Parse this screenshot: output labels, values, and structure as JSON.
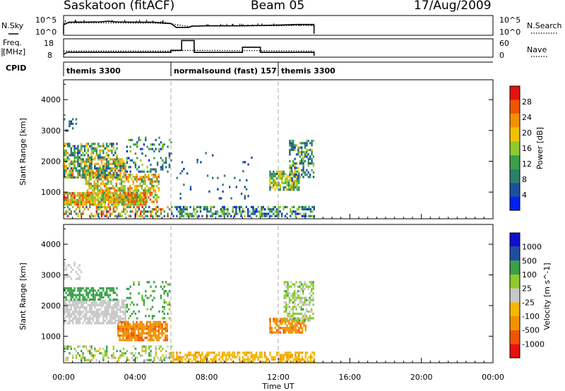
{
  "header": {
    "station": "Saskatoon (fitACF)",
    "beam": "Beam 05",
    "date": "17/Aug/2009"
  },
  "panels": {
    "nsky": {
      "label": "N.Sky",
      "right_label": "N.Search",
      "ticks_left": [
        "10^5",
        "10^0"
      ],
      "ticks_right": [
        "10^5",
        "10^0"
      ]
    },
    "freq": {
      "label_line1": "Freq.",
      "label_line2": "[MHz]",
      "right_label": "Nave",
      "ticks_left": [
        "18",
        "8"
      ],
      "ticks_right": [
        "60",
        "0"
      ]
    },
    "cpid": {
      "label": "CPID",
      "segments": [
        {
          "text": "themis 3300",
          "start_h": 0.0,
          "end_h": 6.0
        },
        {
          "text": "normalsound (fast) 157",
          "start_h": 6.0,
          "end_h": 12.0
        },
        {
          "text": "themis 3300",
          "start_h": 12.0,
          "end_h": 14.0
        }
      ]
    }
  },
  "colors": {
    "power": [
      "#0022ee",
      "#1e4f9c",
      "#2a7f6a",
      "#3aa049",
      "#8ecb2a",
      "#f5c000",
      "#f29200",
      "#ef5500",
      "#e81010"
    ],
    "velocity": [
      "#e81010",
      "#ef5500",
      "#f29200",
      "#f5b800",
      "#c8c8c8",
      "#8ecb2a",
      "#3aa049",
      "#1e4f9c",
      "#1010cc"
    ],
    "cpid_divider": "#aaaaaa"
  },
  "chart_data": [
    {
      "type": "line",
      "title": "N.Sky",
      "x_range": [
        0,
        24
      ],
      "y_scale": "log",
      "ylim": [
        "10^0",
        "10^5"
      ],
      "data_end_h": 14.0,
      "series": [
        {
          "name": "N.Sky",
          "style": "solid",
          "x": [
            0,
            0.3,
            1,
            2,
            2.5,
            3,
            4,
            5,
            6,
            6.3,
            7,
            7.2,
            8,
            9,
            10,
            11,
            12,
            13,
            14
          ],
          "y": [
            2.8,
            3.6,
            3.6,
            3.7,
            3.9,
            3.7,
            3.6,
            3.6,
            3.2,
            2.0,
            2.0,
            2.4,
            2.5,
            2.5,
            2.5,
            2.6,
            2.7,
            2.9,
            2.9
          ]
        },
        {
          "name": "N.Search",
          "style": "dotted",
          "x": [
            0,
            1,
            2,
            3,
            4,
            5,
            6,
            7,
            8,
            9,
            10,
            11,
            12,
            13,
            14
          ],
          "y": [
            3.3,
            3.4,
            3.4,
            3.4,
            3.3,
            3.3,
            3.1,
            2.3,
            2.4,
            2.4,
            2.4,
            2.5,
            2.5,
            2.6,
            2.6
          ]
        }
      ]
    },
    {
      "type": "line",
      "title": "Freq. / Nave",
      "x_range": [
        0,
        24
      ],
      "ylim": [
        8,
        18
      ],
      "ylim_right": [
        0,
        60
      ],
      "data_end_h": 14.0,
      "series": [
        {
          "name": "Freq.",
          "unit": "MHz",
          "style": "solid",
          "x": [
            0,
            0.2,
            6.0,
            6.0,
            6.6,
            6.6,
            7.3,
            7.3,
            10.0,
            10.0,
            11.0,
            11.0,
            14.0
          ],
          "y": [
            9.0,
            10.2,
            10.2,
            11.5,
            11.5,
            17.8,
            17.8,
            10.2,
            10.2,
            13.5,
            13.5,
            10.2,
            10.2
          ]
        },
        {
          "name": "Nave",
          "style": "dotted",
          "x": [
            0,
            6,
            7,
            12,
            14
          ],
          "y": [
            18,
            18,
            21,
            19,
            18
          ]
        }
      ]
    },
    {
      "type": "heatmap",
      "title": "Power",
      "xlabel": "Time UT",
      "ylabel": "Slant Range [km]",
      "colorbar_label": "Power [dB]",
      "colorbar_ticks": [
        4,
        8,
        12,
        16,
        20,
        24,
        28
      ],
      "colorbar_range": [
        0,
        32
      ],
      "x_ticks": [
        "00:00",
        "04:00",
        "08:00",
        "12:00",
        "16:00",
        "20:00",
        "00:00"
      ],
      "x_range": [
        0,
        24
      ],
      "y_ticks": [
        1000,
        2000,
        3000,
        4000
      ],
      "ylim": [
        180,
        4600
      ],
      "data_end_h": 14.0,
      "blobs": [
        {
          "t0": 0.0,
          "t1": 4.6,
          "r0": 600,
          "r1": 1000,
          "dens": 0.88,
          "p": [
            12,
            30
          ]
        },
        {
          "t0": 1.2,
          "t1": 5.3,
          "r0": 700,
          "r1": 1600,
          "dens": 0.6,
          "p": [
            10,
            28
          ]
        },
        {
          "t0": 0.0,
          "t1": 3.5,
          "r0": 1500,
          "r1": 2100,
          "dens": 0.75,
          "p": [
            4,
            26
          ]
        },
        {
          "t0": 0.0,
          "t1": 3.0,
          "r0": 2100,
          "r1": 2600,
          "dens": 0.55,
          "p": [
            3,
            22
          ]
        },
        {
          "t0": 0.0,
          "t1": 0.7,
          "r0": 3000,
          "r1": 3400,
          "dens": 0.3,
          "p": [
            2,
            12
          ]
        },
        {
          "t0": 3.5,
          "t1": 6.0,
          "r0": 1700,
          "r1": 2800,
          "dens": 0.22,
          "p": [
            2,
            16
          ]
        },
        {
          "t0": 0.0,
          "t1": 6.0,
          "r0": 200,
          "r1": 550,
          "dens": 0.45,
          "p": [
            4,
            30
          ]
        },
        {
          "t0": 6.0,
          "t1": 14.0,
          "r0": 200,
          "r1": 550,
          "dens": 0.55,
          "p": [
            2,
            18
          ]
        },
        {
          "t0": 11.5,
          "t1": 13.2,
          "r0": 1100,
          "r1": 1700,
          "dens": 0.7,
          "p": [
            6,
            22
          ]
        },
        {
          "t0": 12.6,
          "t1": 14.0,
          "r0": 1500,
          "r1": 2700,
          "dens": 0.5,
          "p": [
            3,
            20
          ]
        },
        {
          "t0": 6.3,
          "t1": 10.5,
          "r0": 800,
          "r1": 2300,
          "dens": 0.05,
          "p": [
            2,
            10
          ]
        }
      ]
    },
    {
      "type": "heatmap",
      "title": "Velocity",
      "xlabel": "Time UT",
      "ylabel": "Slant Range [km]",
      "colorbar_label": "Velocity [m s^-1]",
      "colorbar_ticks": [
        "-1000",
        "-500",
        "-100",
        "-25",
        "25",
        "100",
        "500",
        "1000"
      ],
      "colorbar_range": [
        -1200,
        1200
      ],
      "x_ticks": [
        "00:00",
        "04:00",
        "08:00",
        "12:00",
        "16:00",
        "20:00",
        "00:00"
      ],
      "x_range": [
        0,
        24
      ],
      "y_ticks": [
        1000,
        2000,
        3000,
        4000
      ],
      "ylim": [
        180,
        4600
      ],
      "data_end_h": 14.0,
      "blobs": [
        {
          "t0": 0.0,
          "t1": 3.5,
          "r0": 1400,
          "r1": 2200,
          "dens": 0.75,
          "v": [
            -25,
            25
          ]
        },
        {
          "t0": 0.0,
          "t1": 3.0,
          "r0": 2200,
          "r1": 2600,
          "dens": 0.6,
          "v": [
            100,
            400
          ]
        },
        {
          "t0": 3.0,
          "t1": 5.8,
          "r0": 900,
          "r1": 1500,
          "dens": 0.8,
          "v": [
            -600,
            -150
          ]
        },
        {
          "t0": 0.0,
          "t1": 6.0,
          "r0": 200,
          "r1": 700,
          "dens": 0.35,
          "v": [
            -60,
            140
          ]
        },
        {
          "t0": 6.0,
          "t1": 14.0,
          "r0": 200,
          "r1": 500,
          "dens": 0.6,
          "v": [
            -120,
            -30
          ]
        },
        {
          "t0": 11.5,
          "t1": 13.5,
          "r0": 1100,
          "r1": 1600,
          "dens": 0.75,
          "v": [
            -600,
            -150
          ]
        },
        {
          "t0": 12.3,
          "t1": 14.0,
          "r0": 1500,
          "r1": 2800,
          "dens": 0.55,
          "v": [
            -25,
            120
          ]
        },
        {
          "t0": 0.0,
          "t1": 1.0,
          "r0": 2900,
          "r1": 3500,
          "dens": 0.3,
          "v": [
            -25,
            25
          ]
        },
        {
          "t0": 3.5,
          "t1": 6.0,
          "r0": 1600,
          "r1": 2800,
          "dens": 0.2,
          "v": [
            50,
            400
          ]
        }
      ]
    }
  ]
}
